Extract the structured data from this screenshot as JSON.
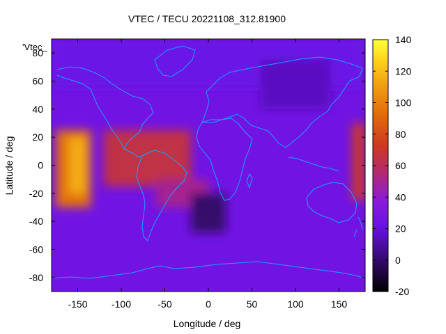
{
  "chart_data": {
    "type": "heatmap",
    "title": "VTEC / TECU 20221108_312.81900",
    "xlabel": "Longitude / deg",
    "ylabel": "Latitude / deg",
    "xlim": [
      -180,
      180
    ],
    "ylim": [
      -90,
      90
    ],
    "xticks": [
      -150,
      -100,
      -50,
      0,
      50,
      100,
      150
    ],
    "yticks": [
      -80,
      -60,
      -40,
      -20,
      0,
      20,
      40,
      60,
      80
    ],
    "colorbar": {
      "label": "",
      "range": [
        -20,
        140
      ],
      "ticks": [
        -20,
        0,
        20,
        40,
        60,
        80,
        100,
        120,
        140
      ],
      "palette": "black-purple-red-orange-yellow"
    },
    "overlay_label": "'Vtec_",
    "grid": false,
    "regions": [
      {
        "name": "background",
        "lon": [
          -180,
          180
        ],
        "lat": [
          -90,
          90
        ],
        "vtec": 25
      },
      {
        "name": "polar-north",
        "lon": [
          -180,
          180
        ],
        "lat": [
          55,
          90
        ],
        "vtec": 22
      },
      {
        "name": "asia-north-low",
        "lon": [
          60,
          140
        ],
        "lat": [
          40,
          75
        ],
        "vtec": 15
      },
      {
        "name": "pacific-east-crest",
        "lon": [
          -175,
          -135
        ],
        "lat": [
          -30,
          25
        ],
        "vtec": 95
      },
      {
        "name": "pacific-peak",
        "lon": [
          -160,
          -140
        ],
        "lat": [
          -20,
          20
        ],
        "vtec": 115
      },
      {
        "name": "equatorial-band-americas",
        "lon": [
          -120,
          -20
        ],
        "lat": [
          -15,
          25
        ],
        "vtec": 65
      },
      {
        "name": "south-atlantic-crest",
        "lon": [
          -60,
          0
        ],
        "lat": [
          -30,
          -10
        ],
        "vtec": 50
      },
      {
        "name": "atlantic-depletion",
        "lon": [
          -20,
          20
        ],
        "lat": [
          -48,
          -20
        ],
        "vtec": 0
      },
      {
        "name": "pacific-west-edge",
        "lon": [
          165,
          180
        ],
        "lat": [
          -25,
          30
        ],
        "vtec": 70
      }
    ]
  }
}
